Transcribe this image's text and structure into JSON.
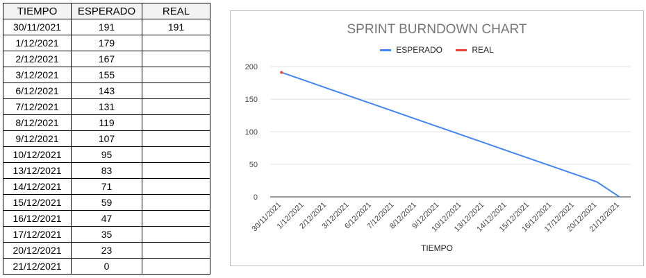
{
  "table": {
    "headers": [
      "TIEMPO",
      "ESPERADO",
      "REAL"
    ],
    "rows": [
      [
        "30/11/2021",
        "191",
        "191"
      ],
      [
        "1/12/2021",
        "179",
        ""
      ],
      [
        "2/12/2021",
        "167",
        ""
      ],
      [
        "3/12/2021",
        "155",
        ""
      ],
      [
        "6/12/2021",
        "143",
        ""
      ],
      [
        "7/12/2021",
        "131",
        ""
      ],
      [
        "8/12/2021",
        "119",
        ""
      ],
      [
        "9/12/2021",
        "107",
        ""
      ],
      [
        "10/12/2021",
        "95",
        ""
      ],
      [
        "13/12/2021",
        "83",
        ""
      ],
      [
        "14/12/2021",
        "71",
        ""
      ],
      [
        "15/12/2021",
        "59",
        ""
      ],
      [
        "16/12/2021",
        "47",
        ""
      ],
      [
        "17/12/2021",
        "35",
        ""
      ],
      [
        "20/12/2021",
        "23",
        ""
      ],
      [
        "21/12/2021",
        "0",
        ""
      ]
    ]
  },
  "chart_data": {
    "type": "line",
    "title": "SPRINT BURNDOWN CHART",
    "xlabel": "TIEMPO",
    "ylabel": "",
    "ylim": [
      0,
      200
    ],
    "yticks": [
      0,
      50,
      100,
      150,
      200
    ],
    "grid": true,
    "legend_position": "top",
    "categories": [
      "30/11/2021",
      "1/12/2021",
      "2/12/2021",
      "3/12/2021",
      "6/12/2021",
      "7/12/2021",
      "8/12/2021",
      "9/12/2021",
      "10/12/2021",
      "13/12/2021",
      "14/12/2021",
      "15/12/2021",
      "16/12/2021",
      "17/12/2021",
      "20/12/2021",
      "21/12/2021"
    ],
    "series": [
      {
        "name": "ESPERADO",
        "color": "#4285f4",
        "values": [
          191,
          179,
          167,
          155,
          143,
          131,
          119,
          107,
          95,
          83,
          71,
          59,
          47,
          35,
          23,
          0
        ]
      },
      {
        "name": "REAL",
        "color": "#ea4335",
        "values": [
          191,
          null,
          null,
          null,
          null,
          null,
          null,
          null,
          null,
          null,
          null,
          null,
          null,
          null,
          null,
          null
        ]
      }
    ]
  }
}
